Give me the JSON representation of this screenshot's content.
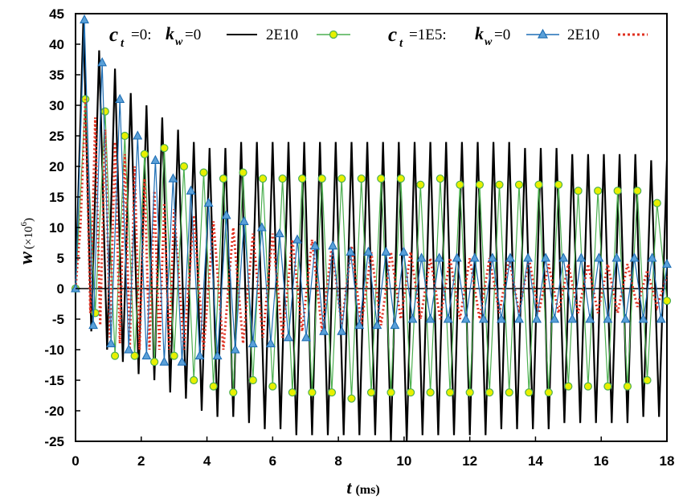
{
  "chart_data": {
    "type": "line",
    "xlabel": "t",
    "xlabel_unit": "(ms)",
    "ylabel": "w",
    "ylabel_unit": "(×10",
    "ylabel_exp": "6",
    "xlim": [
      0,
      18
    ],
    "ylim": [
      -25,
      45
    ],
    "xticks": [
      0,
      2,
      4,
      6,
      8,
      10,
      12,
      14,
      16,
      18
    ],
    "yticks": [
      -25,
      -20,
      -15,
      -10,
      -5,
      0,
      5,
      10,
      15,
      20,
      25,
      30,
      35,
      40,
      45
    ],
    "grid": false,
    "legend_placement": "top",
    "legend_groups": [
      {
        "prefix_var": "c",
        "prefix_sub": "t",
        "prefix_value": "=0:",
        "kw_var": "k",
        "kw_sub": "w",
        "entries": [
          "=0",
          "2E10"
        ]
      },
      {
        "prefix_var": "c",
        "prefix_sub": "t",
        "prefix_value": "=1E5:",
        "kw_var": "k",
        "kw_sub": "w",
        "entries": [
          "=0",
          "2E10"
        ]
      }
    ],
    "series": [
      {
        "name": "c_t=0, k_w=0",
        "color": "#000000",
        "style": "solid",
        "marker": "none",
        "x": [
          0,
          0.24,
          0.48,
          0.72,
          0.96,
          1.2,
          1.44,
          1.68,
          1.92,
          2.16,
          2.4,
          2.64,
          2.88,
          3.12,
          3.36,
          3.6,
          3.84,
          4.08,
          4.32,
          4.56,
          4.8,
          5.04,
          5.28,
          5.52,
          5.76,
          6.0,
          6.24,
          6.48,
          6.72,
          6.96,
          7.2,
          7.44,
          7.68,
          7.92,
          8.16,
          8.4,
          8.64,
          8.88,
          9.12,
          9.36,
          9.6,
          9.84,
          10.08,
          10.32,
          10.56,
          10.8,
          11.04,
          11.28,
          11.52,
          11.76,
          12.0,
          12.24,
          12.48,
          12.72,
          12.96,
          13.2,
          13.44,
          13.68,
          13.92,
          14.16,
          14.4,
          14.64,
          14.88,
          15.12,
          15.36,
          15.6,
          15.84,
          16.08,
          16.32,
          16.56,
          16.8,
          17.04,
          17.28,
          17.52,
          17.76,
          18.0
        ],
        "y": [
          0,
          44,
          -7,
          39,
          -10,
          36,
          -12,
          32,
          -14,
          30,
          -15,
          28,
          -17,
          26,
          -18,
          24,
          -20,
          23,
          -21,
          23,
          -21,
          24,
          -22,
          24,
          -23,
          24,
          -23,
          24,
          -24,
          24,
          -24,
          24,
          -24,
          24,
          -24,
          24,
          -24,
          24,
          -24,
          24,
          -25,
          24,
          -25,
          24,
          -24,
          24,
          -24,
          24,
          -24,
          24,
          -24,
          24,
          -24,
          24,
          -23,
          24,
          -23,
          23,
          -23,
          23,
          -23,
          23,
          -22,
          22,
          -22,
          22,
          -22,
          22,
          -22,
          22,
          -22,
          22,
          -21,
          21,
          -21,
          21
        ]
      },
      {
        "name": "c_t=0, k_w=2E10",
        "color": "#4caf50",
        "style": "solid",
        "marker": "circle",
        "marker_fill": "#e8f000",
        "x": [
          0,
          0.3,
          0.6,
          0.9,
          1.2,
          1.5,
          1.8,
          2.1,
          2.4,
          2.7,
          3.0,
          3.3,
          3.6,
          3.9,
          4.2,
          4.5,
          4.8,
          5.1,
          5.4,
          5.7,
          6.0,
          6.3,
          6.6,
          6.9,
          7.2,
          7.5,
          7.8,
          8.1,
          8.4,
          8.7,
          9.0,
          9.3,
          9.6,
          9.9,
          10.2,
          10.5,
          10.8,
          11.1,
          11.4,
          11.7,
          12.0,
          12.3,
          12.6,
          12.9,
          13.2,
          13.5,
          13.8,
          14.1,
          14.4,
          14.7,
          15.0,
          15.3,
          15.6,
          15.9,
          16.2,
          16.5,
          16.8,
          17.1,
          17.4,
          17.7,
          18.0
        ],
        "y": [
          0,
          31,
          -4,
          29,
          -11,
          25,
          -11,
          22,
          -12,
          23,
          -11,
          20,
          -15,
          19,
          -16,
          18,
          -17,
          19,
          -15,
          18,
          -16,
          18,
          -17,
          18,
          -17,
          18,
          -17,
          18,
          -18,
          18,
          -17,
          18,
          -17,
          18,
          -17,
          17,
          -17,
          18,
          -17,
          17,
          -17,
          17,
          -17,
          17,
          -17,
          17,
          -17,
          17,
          -17,
          17,
          -16,
          16,
          -16,
          16,
          -16,
          16,
          -16,
          16,
          -15,
          14,
          -2
        ]
      },
      {
        "name": "c_t=1E5, k_w=0",
        "color": "#1f6fb5",
        "style": "solid",
        "marker": "triangle",
        "marker_fill": "#5aa0d8",
        "x": [
          0,
          0.27,
          0.54,
          0.81,
          1.08,
          1.35,
          1.62,
          1.89,
          2.16,
          2.43,
          2.7,
          2.97,
          3.24,
          3.51,
          3.78,
          4.05,
          4.32,
          4.59,
          4.86,
          5.13,
          5.4,
          5.67,
          5.94,
          6.21,
          6.48,
          6.75,
          7.02,
          7.29,
          7.56,
          7.83,
          8.1,
          8.37,
          8.64,
          8.91,
          9.18,
          9.45,
          9.72,
          9.99,
          10.26,
          10.53,
          10.8,
          11.07,
          11.34,
          11.61,
          11.88,
          12.15,
          12.42,
          12.69,
          12.96,
          13.23,
          13.5,
          13.77,
          14.04,
          14.31,
          14.58,
          14.85,
          15.12,
          15.39,
          15.66,
          15.93,
          16.2,
          16.47,
          16.74,
          17.01,
          17.28,
          17.55,
          17.82,
          18.0
        ],
        "y": [
          0,
          44,
          -6,
          37,
          -9,
          31,
          -10,
          25,
          -11,
          21,
          -12,
          18,
          -12,
          16,
          -11,
          14,
          -11,
          12,
          -10,
          11,
          -9,
          10,
          -9,
          9,
          -8,
          8,
          -8,
          7,
          -7,
          7,
          -7,
          6,
          -6,
          6,
          -6,
          6,
          -6,
          6,
          -5,
          5,
          -5,
          5,
          -5,
          5,
          -5,
          5,
          -5,
          5,
          -5,
          5,
          -5,
          5,
          -5,
          5,
          -5,
          5,
          -5,
          5,
          -5,
          5,
          -5,
          5,
          -5,
          5,
          -5,
          5,
          -5,
          4
        ]
      },
      {
        "name": "c_t=1E5, k_w=2E10",
        "color": "#e03020",
        "style": "dotted",
        "marker": "none",
        "x": [
          0,
          0.15,
          0.3,
          0.45,
          0.6,
          0.75,
          0.9,
          1.05,
          1.2,
          1.35,
          1.5,
          1.65,
          1.8,
          1.95,
          2.1,
          2.25,
          2.4,
          2.55,
          2.7,
          2.85,
          3.0,
          3.3,
          3.6,
          3.9,
          4.2,
          4.5,
          4.8,
          5.1,
          5.4,
          5.7,
          6.0,
          6.3,
          6.6,
          6.9,
          7.2,
          7.5,
          7.8,
          8.1,
          8.4,
          8.7,
          9.0,
          9.3,
          9.6,
          9.9,
          10.2,
          10.5,
          10.8,
          11.1,
          11.4,
          11.7,
          12.0,
          12.3,
          12.6,
          12.9,
          13.2,
          13.5,
          13.8,
          14.1,
          14.4,
          14.7,
          15.0,
          15.3,
          15.6,
          15.9,
          16.2,
          16.5,
          16.8,
          17.1,
          17.4,
          17.7,
          18.0
        ],
        "y": [
          0,
          10,
          31,
          -4,
          28,
          -6,
          26,
          -8,
          24,
          -9,
          22,
          -10,
          20,
          -10,
          18,
          -10,
          16,
          -10,
          14,
          -10,
          13,
          -10,
          12,
          -10,
          11,
          -10,
          10,
          -9,
          9,
          -8,
          9,
          -8,
          8,
          -7,
          8,
          -7,
          7,
          -6,
          7,
          -6,
          6,
          -6,
          6,
          -5,
          6,
          -5,
          5,
          -5,
          5,
          -5,
          5,
          -5,
          5,
          -4,
          5,
          -4,
          5,
          -4,
          4,
          -4,
          4,
          -4,
          4,
          -4,
          4,
          -4,
          4,
          -3,
          3,
          -3,
          2
        ]
      }
    ]
  }
}
